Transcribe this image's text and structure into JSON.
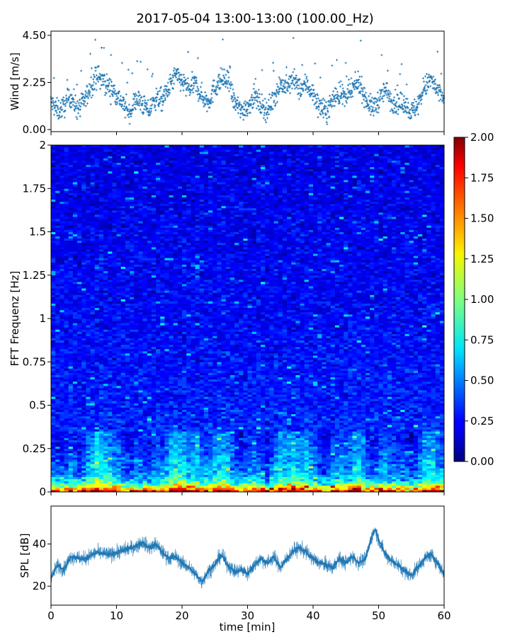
{
  "title": "2017-05-04 13:00-13:00 (100.00_Hz)",
  "chart_data": [
    {
      "type": "scatter",
      "name": "wind",
      "ylabel": "Wind [m/s]",
      "ylim": [
        -0.1,
        4.7
      ],
      "yticks": [
        "0.00",
        "2.25",
        "4.50"
      ],
      "ytick_values": [
        0.0,
        2.25,
        4.5
      ],
      "xlim": [
        0,
        60
      ],
      "color": "#1f77b4",
      "trend": [
        [
          0,
          1.3
        ],
        [
          1,
          0.9
        ],
        [
          2,
          1.1
        ],
        [
          3,
          1.6
        ],
        [
          4,
          1.0
        ],
        [
          5,
          1.3
        ],
        [
          6,
          2.0
        ],
        [
          7,
          2.6
        ],
        [
          8,
          2.3
        ],
        [
          9,
          2.0
        ],
        [
          10,
          1.7
        ],
        [
          11,
          1.2
        ],
        [
          12,
          0.8
        ],
        [
          13,
          1.5
        ],
        [
          14,
          1.2
        ],
        [
          15,
          0.9
        ],
        [
          16,
          1.5
        ],
        [
          17,
          1.4
        ],
        [
          18,
          2.0
        ],
        [
          19,
          2.6
        ],
        [
          20,
          2.3
        ],
        [
          21,
          1.9
        ],
        [
          22,
          2.2
        ],
        [
          23,
          1.6
        ],
        [
          24,
          1.3
        ],
        [
          25,
          2.0
        ],
        [
          26,
          2.4
        ],
        [
          27,
          2.3
        ],
        [
          28,
          1.3
        ],
        [
          29,
          0.9
        ],
        [
          30,
          1.1
        ],
        [
          31,
          1.6
        ],
        [
          32,
          1.2
        ],
        [
          33,
          0.9
        ],
        [
          34,
          1.5
        ],
        [
          35,
          2.2
        ],
        [
          36,
          2.0
        ],
        [
          37,
          2.4
        ],
        [
          38,
          1.9
        ],
        [
          39,
          2.2
        ],
        [
          40,
          1.7
        ],
        [
          41,
          1.1
        ],
        [
          42,
          0.8
        ],
        [
          43,
          1.5
        ],
        [
          44,
          1.7
        ],
        [
          45,
          1.5
        ],
        [
          46,
          1.9
        ],
        [
          47,
          2.3
        ],
        [
          48,
          1.5
        ],
        [
          49,
          1.0
        ],
        [
          50,
          1.4
        ],
        [
          51,
          1.9
        ],
        [
          52,
          1.4
        ],
        [
          53,
          1.2
        ],
        [
          54,
          1.3
        ],
        [
          55,
          0.8
        ],
        [
          56,
          1.2
        ],
        [
          57,
          2.0
        ],
        [
          58,
          2.4
        ],
        [
          59,
          1.8
        ],
        [
          60,
          1.5
        ]
      ],
      "noise_amplitude": 0.55
    },
    {
      "type": "heatmap",
      "name": "spectrogram",
      "ylabel": "FFT Frequenz [Hz]",
      "ylim": [
        0,
        2
      ],
      "yticks": [
        "0",
        "0.25",
        "0.5",
        "0.75",
        "1",
        "1.25",
        "1.5",
        "1.75",
        "2"
      ],
      "ytick_values": [
        0,
        0.25,
        0.5,
        0.75,
        1,
        1.25,
        1.5,
        1.75,
        2
      ],
      "xlim": [
        0,
        60
      ],
      "colormap": "jet",
      "colorbar": {
        "range": [
          0,
          2
        ],
        "ticks": [
          "0.00",
          "0.25",
          "0.50",
          "0.75",
          "1.00",
          "1.25",
          "1.50",
          "1.75",
          "2.00"
        ],
        "tick_values": [
          0,
          0.25,
          0.5,
          0.75,
          1.0,
          1.25,
          1.5,
          1.75,
          2.0
        ]
      },
      "background_level": 0.2,
      "low_freq_profile": [
        [
          0.0,
          1.8
        ],
        [
          0.02,
          1.4
        ],
        [
          0.05,
          0.85
        ],
        [
          0.1,
          0.55
        ],
        [
          0.2,
          0.45
        ],
        [
          0.3,
          0.35
        ],
        [
          0.5,
          0.3
        ],
        [
          1.0,
          0.25
        ],
        [
          2.0,
          0.2
        ]
      ]
    },
    {
      "type": "line",
      "name": "spl",
      "ylabel": "SPL [dB]",
      "xlabel": "time [min]",
      "ylim": [
        11,
        58
      ],
      "yticks": [
        "20",
        "40"
      ],
      "ytick_values": [
        20,
        40
      ],
      "xlim": [
        0,
        60
      ],
      "xticks": [
        "0",
        "10",
        "20",
        "30",
        "40",
        "50",
        "60"
      ],
      "xtick_values": [
        0,
        10,
        20,
        30,
        40,
        50,
        60
      ],
      "color": "#1f77b4",
      "trend": [
        [
          0,
          24
        ],
        [
          1,
          30
        ],
        [
          2,
          28
        ],
        [
          3,
          34
        ],
        [
          5,
          33
        ],
        [
          7,
          36
        ],
        [
          9,
          35
        ],
        [
          11,
          37
        ],
        [
          13,
          39
        ],
        [
          14,
          41
        ],
        [
          15,
          38
        ],
        [
          16,
          40
        ],
        [
          17,
          36
        ],
        [
          18,
          33
        ],
        [
          19,
          34
        ],
        [
          20,
          31
        ],
        [
          21,
          29
        ],
        [
          22,
          26
        ],
        [
          23,
          22
        ],
        [
          24,
          27
        ],
        [
          25,
          30
        ],
        [
          26,
          35
        ],
        [
          27,
          30
        ],
        [
          28,
          27
        ],
        [
          29,
          28
        ],
        [
          30,
          26
        ],
        [
          31,
          30
        ],
        [
          32,
          33
        ],
        [
          33,
          31
        ],
        [
          34,
          34
        ],
        [
          35,
          29
        ],
        [
          36,
          33
        ],
        [
          37,
          37
        ],
        [
          38,
          38
        ],
        [
          39,
          36
        ],
        [
          40,
          33
        ],
        [
          41,
          31
        ],
        [
          42,
          30
        ],
        [
          43,
          29
        ],
        [
          44,
          33
        ],
        [
          45,
          31
        ],
        [
          46,
          34
        ],
        [
          47,
          31
        ],
        [
          48,
          33
        ],
        [
          49,
          44
        ],
        [
          49.5,
          47
        ],
        [
          50,
          42
        ],
        [
          51,
          35
        ],
        [
          52,
          32
        ],
        [
          53,
          30
        ],
        [
          54,
          27
        ],
        [
          55,
          25
        ],
        [
          56,
          29
        ],
        [
          57,
          33
        ],
        [
          58,
          35
        ],
        [
          59,
          31
        ],
        [
          60,
          26
        ]
      ],
      "noise_amplitude": 6
    }
  ]
}
